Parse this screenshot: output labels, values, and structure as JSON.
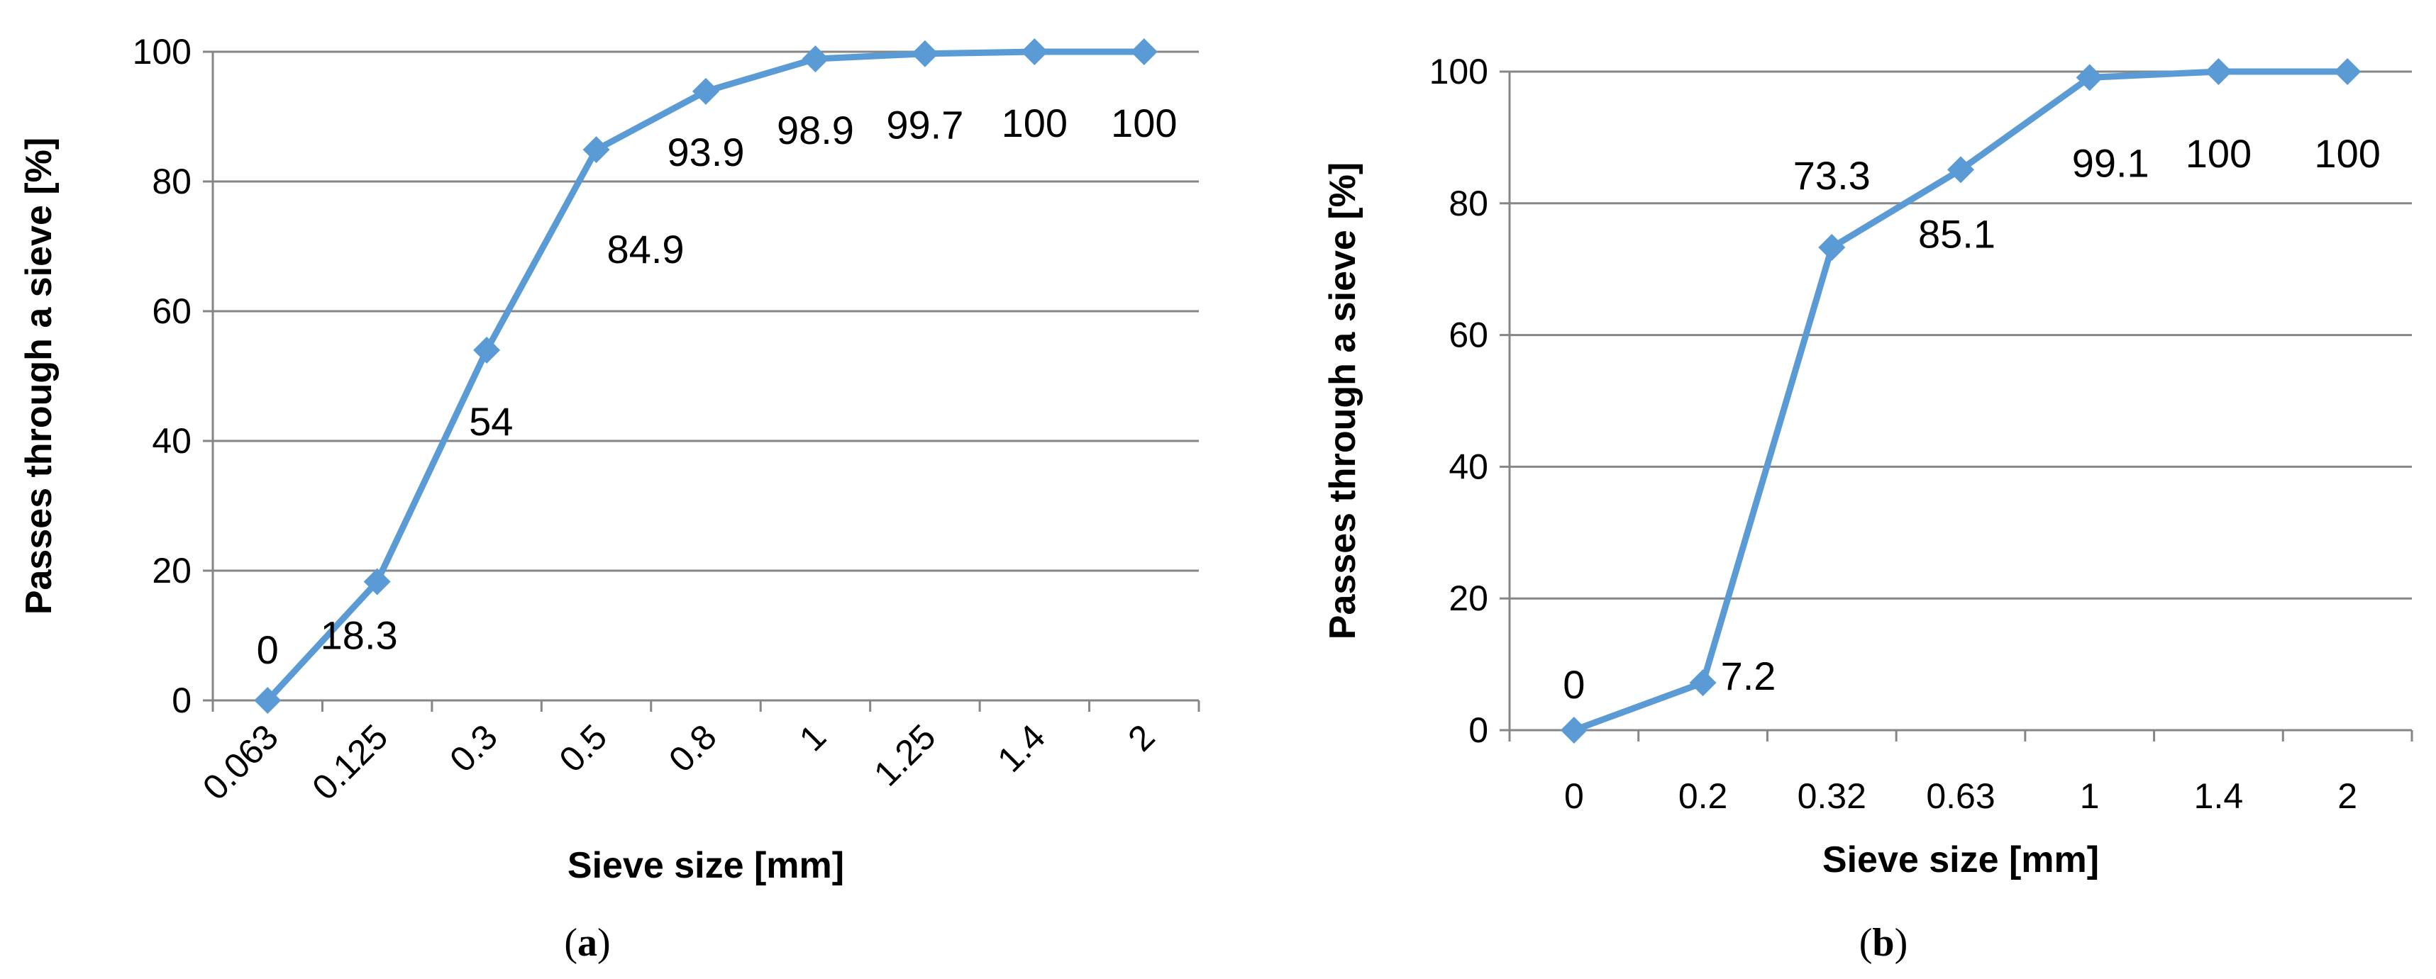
{
  "chart_data": [
    {
      "type": "line",
      "caption_letter": "a",
      "xlabel": "Sieve size [mm]",
      "ylabel": "Passes through a sieve [%]",
      "ylim": [
        0,
        100
      ],
      "yticks": [
        0,
        20,
        40,
        60,
        80,
        100
      ],
      "grid": true,
      "categories": [
        "0.063",
        "0.125",
        "0.3",
        "0.5",
        "0.8",
        "1",
        "1.25",
        "1.4",
        "2"
      ],
      "series": [
        {
          "values": [
            0,
            18.3,
            54,
            84.9,
            93.9,
            98.9,
            99.7,
            100,
            100
          ],
          "data_labels": [
            "0",
            "18.3",
            "54",
            "84.9",
            "93.9",
            "98.9",
            "99.7",
            "100",
            "100"
          ],
          "color": "#5b9bd5",
          "marker": "diamond"
        }
      ]
    },
    {
      "type": "line",
      "caption_letter": "b",
      "xlabel": "Sieve size [mm]",
      "ylabel": "Passes through a sieve [%]",
      "ylim": [
        0,
        100
      ],
      "yticks": [
        0,
        20,
        40,
        60,
        80,
        100
      ],
      "grid": true,
      "categories": [
        "0",
        "0.2",
        "0.32",
        "0.63",
        "1",
        "1.4",
        "2"
      ],
      "series": [
        {
          "values": [
            0,
            7.2,
            73.3,
            85.1,
            99.1,
            100,
            100
          ],
          "data_labels": [
            "0",
            "7.2",
            "73.3",
            "85.1",
            "99.1",
            "100",
            "100"
          ],
          "color": "#5b9bd5",
          "marker": "diamond"
        }
      ]
    }
  ]
}
